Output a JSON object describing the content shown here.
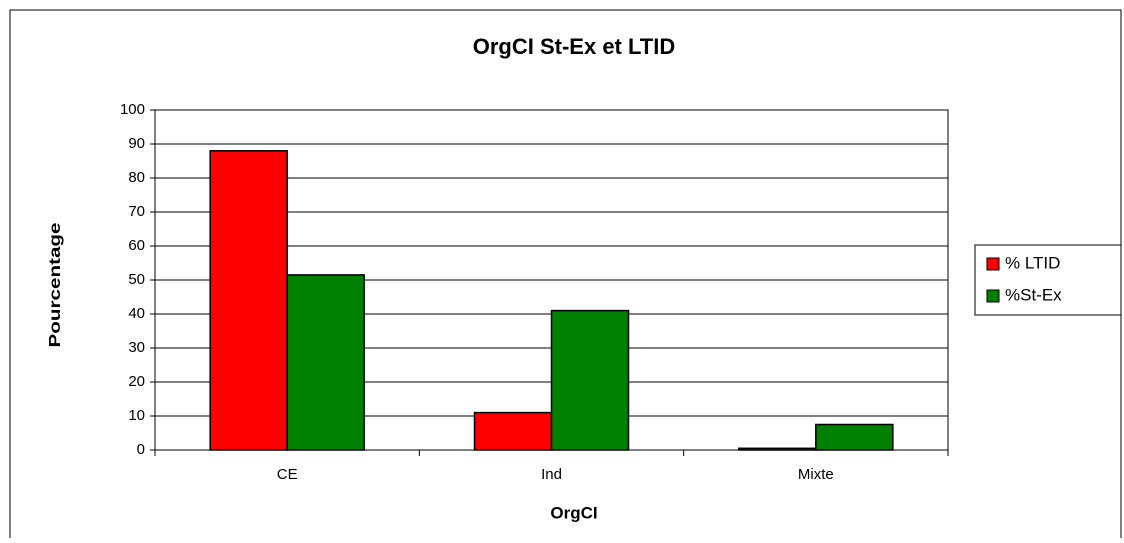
{
  "chart_data": {
    "type": "bar",
    "title": "OrgCI St-Ex et LTID",
    "x_label": "OrgCI",
    "y_label": "Pourcentage",
    "categories": [
      "CE",
      "Ind",
      "Mixte"
    ],
    "series": [
      {
        "name": "% LTID",
        "color": "#ff0000",
        "values": [
          88,
          11,
          0.5
        ]
      },
      {
        "name": "%St-Ex",
        "color": "#008000",
        "values": [
          51.5,
          41,
          7.5
        ]
      }
    ],
    "ylim": [
      0,
      100
    ],
    "yticks": [
      0,
      10,
      20,
      30,
      40,
      50,
      60,
      70,
      80,
      90,
      100
    ],
    "grid": true,
    "legend": "right"
  }
}
